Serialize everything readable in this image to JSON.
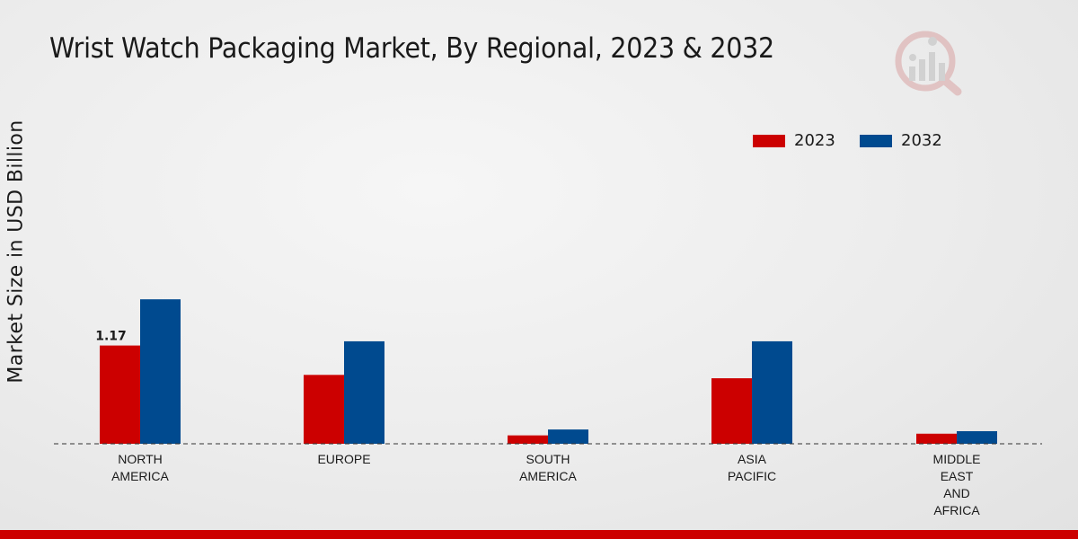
{
  "colors": {
    "series_2023": "#cc0000",
    "series_2032": "#004a8f",
    "footer": "#cc0000"
  },
  "chart_data": {
    "type": "bar",
    "title": "Wrist Watch Packaging Market, By Regional, 2023 & 2032",
    "xlabel": "",
    "ylabel": "Market Size in USD Billion",
    "ylim": [
      0,
      4
    ],
    "grid": false,
    "legend_position": "top-right",
    "categories": [
      [
        "NORTH",
        "AMERICA"
      ],
      [
        "EUROPE"
      ],
      [
        "SOUTH",
        "AMERICA"
      ],
      [
        "ASIA",
        "PACIFIC"
      ],
      [
        "MIDDLE",
        "EAST",
        "AND",
        "AFRICA"
      ]
    ],
    "series": [
      {
        "name": "2023",
        "values": [
          1.17,
          0.82,
          0.1,
          0.78,
          0.12
        ]
      },
      {
        "name": "2032",
        "values": [
          1.72,
          1.22,
          0.17,
          1.22,
          0.15
        ]
      }
    ],
    "data_labels": [
      {
        "series": 0,
        "index": 0,
        "text": "1.17"
      }
    ]
  }
}
